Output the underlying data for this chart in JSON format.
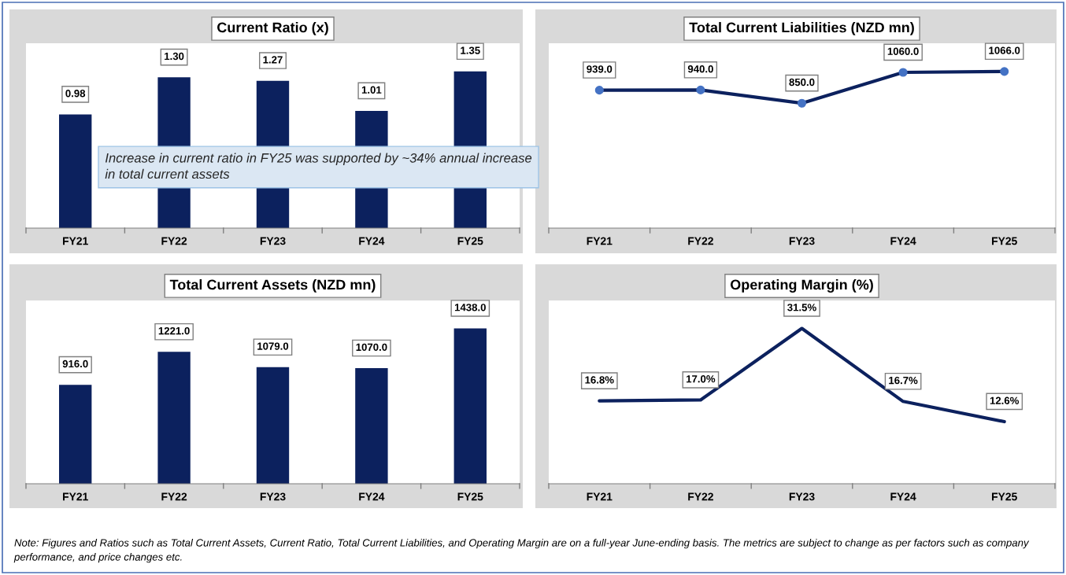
{
  "chart_data": [
    {
      "type": "bar",
      "title": "Current Ratio (x)",
      "categories": [
        "FY21",
        "FY22",
        "FY23",
        "FY24",
        "FY25"
      ],
      "values": [
        0.98,
        1.3,
        1.27,
        1.01,
        1.35
      ],
      "value_labels": [
        "0.98",
        "1.30",
        "1.27",
        "1.01",
        "1.35"
      ],
      "color": "#0c215e",
      "annotations": [
        "Increase in current ratio in FY25 was supported by ~34% annual increase in total current assets"
      ]
    },
    {
      "type": "line",
      "title": "Total Current Liabilities (NZD mn)",
      "categories": [
        "FY21",
        "FY22",
        "FY23",
        "FY24",
        "FY25"
      ],
      "values": [
        939.0,
        940.0,
        850.0,
        1060.0,
        1066.0
      ],
      "value_labels": [
        "939.0",
        "940.0",
        "850.0",
        "1060.0",
        "1066.0"
      ],
      "color": "#0c215e",
      "marker": "circle",
      "line_style": "solid"
    },
    {
      "type": "bar",
      "title": "Total Current Assets (NZD mn)",
      "categories": [
        "FY21",
        "FY22",
        "FY23",
        "FY24",
        "FY25"
      ],
      "values": [
        916.0,
        1221.0,
        1079.0,
        1070.0,
        1438.0
      ],
      "value_labels": [
        "916.0",
        "1221.0",
        "1079.0",
        "1070.0",
        "1438.0"
      ],
      "color": "#0c215e"
    },
    {
      "type": "line",
      "title": "Operating Margin (%)",
      "categories": [
        "FY21",
        "FY22",
        "FY23",
        "FY24",
        "FY25"
      ],
      "values": [
        16.8,
        17.0,
        31.5,
        16.7,
        12.6
      ],
      "value_labels": [
        "16.8%",
        "17.0%",
        "31.5%",
        "16.7%",
        "12.6%"
      ],
      "color": "#0c215e",
      "line_style": "solid",
      "annotations": [
        "Note: Figures and Ratios such as Total Current Assets, Current Ratio, Total Current Liabilities, and Operating Margin are on a full-year June-ending basis. The metrics are subject to change as per factors such as company performance, and price changes etc."
      ]
    }
  ]
}
